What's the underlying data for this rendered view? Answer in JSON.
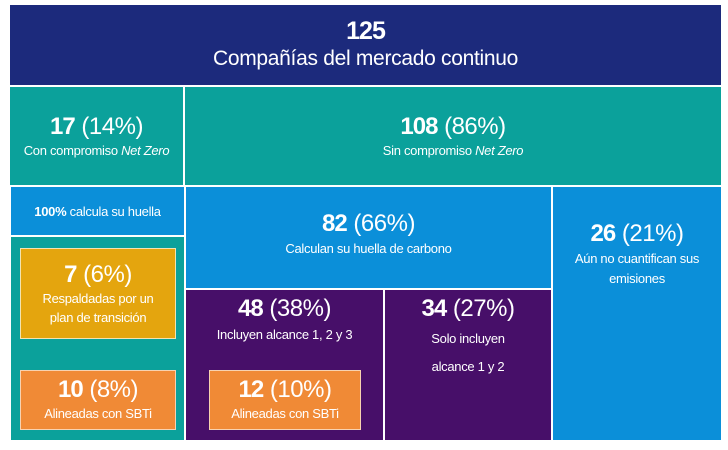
{
  "total": {
    "value": "125",
    "label": "Compañías del mercado continuo"
  },
  "net_zero": {
    "value": "17",
    "pct": "(14%)",
    "label": "Con compromiso ",
    "label_em": "Net Zero"
  },
  "no_net_zero": {
    "value": "108",
    "pct": "(86%)",
    "label": "Sin compromiso ",
    "label_em": "Net Zero"
  },
  "all_calculate": {
    "value": "100%",
    "label": " calcula su huella"
  },
  "transition_plan": {
    "value": "7",
    "pct": "(6%)",
    "label_line1": "Respaldadas por un",
    "label_line2": "plan de transición"
  },
  "sbti_netzero": {
    "value": "10",
    "pct": "(8%)",
    "label": "Alineadas con SBTi"
  },
  "calculate_footprint": {
    "value": "82",
    "pct": "(66%)",
    "label": "Calculan su huella de carbono"
  },
  "not_quantify": {
    "value": "26",
    "pct": "(21%)",
    "label_line1": "Aún no cuantifican sus",
    "label_line2": "emisiones"
  },
  "scope_123": {
    "value": "48",
    "pct": "(38%)",
    "label": "Incluyen alcance 1, 2 y 3"
  },
  "scope_12": {
    "value": "34",
    "pct": "(27%)",
    "label_line1": "Solo incluyen",
    "label_line2": "alcance 1 y 2"
  },
  "sbti_scope": {
    "value": "12",
    "pct": "(10%)",
    "label": "Alineadas con SBTi"
  },
  "colors": {
    "navy": "#1c2a7c",
    "teal": "#0ba19b",
    "blue": "#0b8fd9",
    "purple": "#470f69",
    "yellow": "#e4a50e",
    "orange": "#f08a36"
  }
}
